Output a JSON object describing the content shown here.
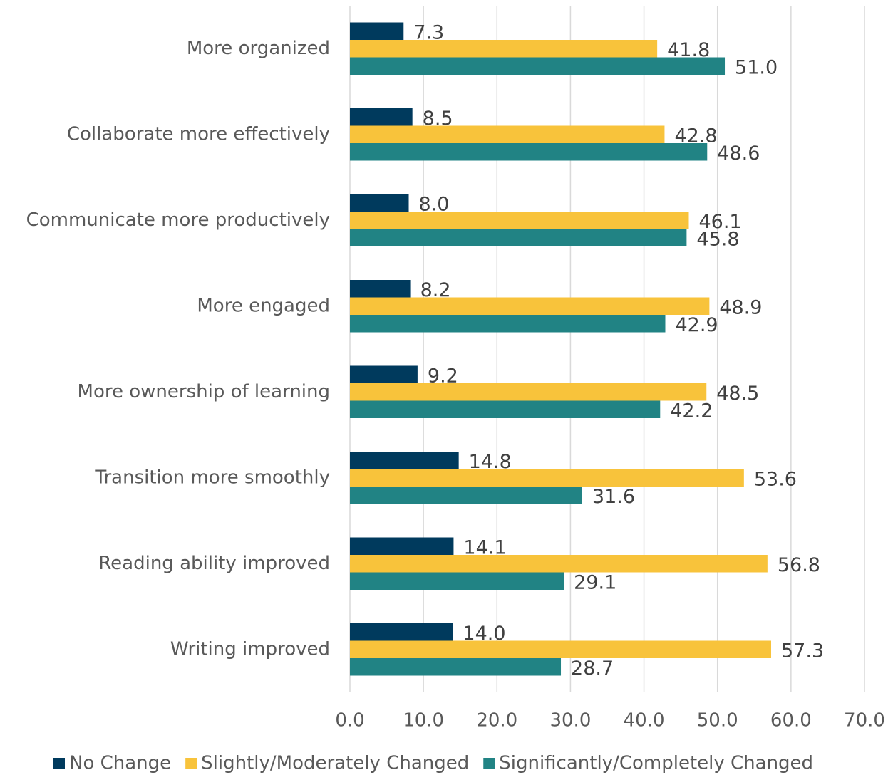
{
  "chart_data": {
    "type": "hbar",
    "categories": [
      "More organized",
      "Collaborate more effectively",
      "Communicate more productively",
      "More engaged",
      "More ownership of learning",
      "Transition more smoothly",
      "Reading ability improved",
      "Writing improved"
    ],
    "series": [
      {
        "name": "No Change",
        "color": "#003a5d",
        "values": [
          7.3,
          8.5,
          8.0,
          8.2,
          9.2,
          14.8,
          14.1,
          14.0
        ],
        "value_labels": [
          "7.3",
          "8.5",
          "8.0",
          "8.2",
          "9.2",
          "14.8",
          "14.1",
          "14.0"
        ]
      },
      {
        "name": "Slightly/Moderately Changed",
        "color": "#f8c33b",
        "values": [
          41.8,
          42.8,
          46.1,
          48.9,
          48.5,
          53.6,
          56.8,
          57.3
        ],
        "value_labels": [
          "41.8",
          "42.8",
          "46.1",
          "48.9",
          "48.5",
          "53.6",
          "56.8",
          "57.3"
        ]
      },
      {
        "name": "Significantly/Completely Changed",
        "color": "#218384",
        "values": [
          51.0,
          48.6,
          45.8,
          42.9,
          42.2,
          31.6,
          29.1,
          28.7
        ],
        "value_labels": [
          "51.0",
          "48.6",
          "45.8",
          "42.9",
          "42.2",
          "31.6",
          "29.1",
          "28.7"
        ]
      }
    ],
    "xlim": [
      0,
      70
    ],
    "xticks": [
      {
        "value": 0,
        "label": "0.0"
      },
      {
        "value": 10,
        "label": "10.0"
      },
      {
        "value": 20,
        "label": "20.0"
      },
      {
        "value": 30,
        "label": "30.0"
      },
      {
        "value": 40,
        "label": "40.0"
      },
      {
        "value": 50,
        "label": "50.0"
      },
      {
        "value": 60,
        "label": "60.0"
      },
      {
        "value": 70,
        "label": "70.0"
      }
    ],
    "grid": true,
    "legend": "bottom"
  }
}
